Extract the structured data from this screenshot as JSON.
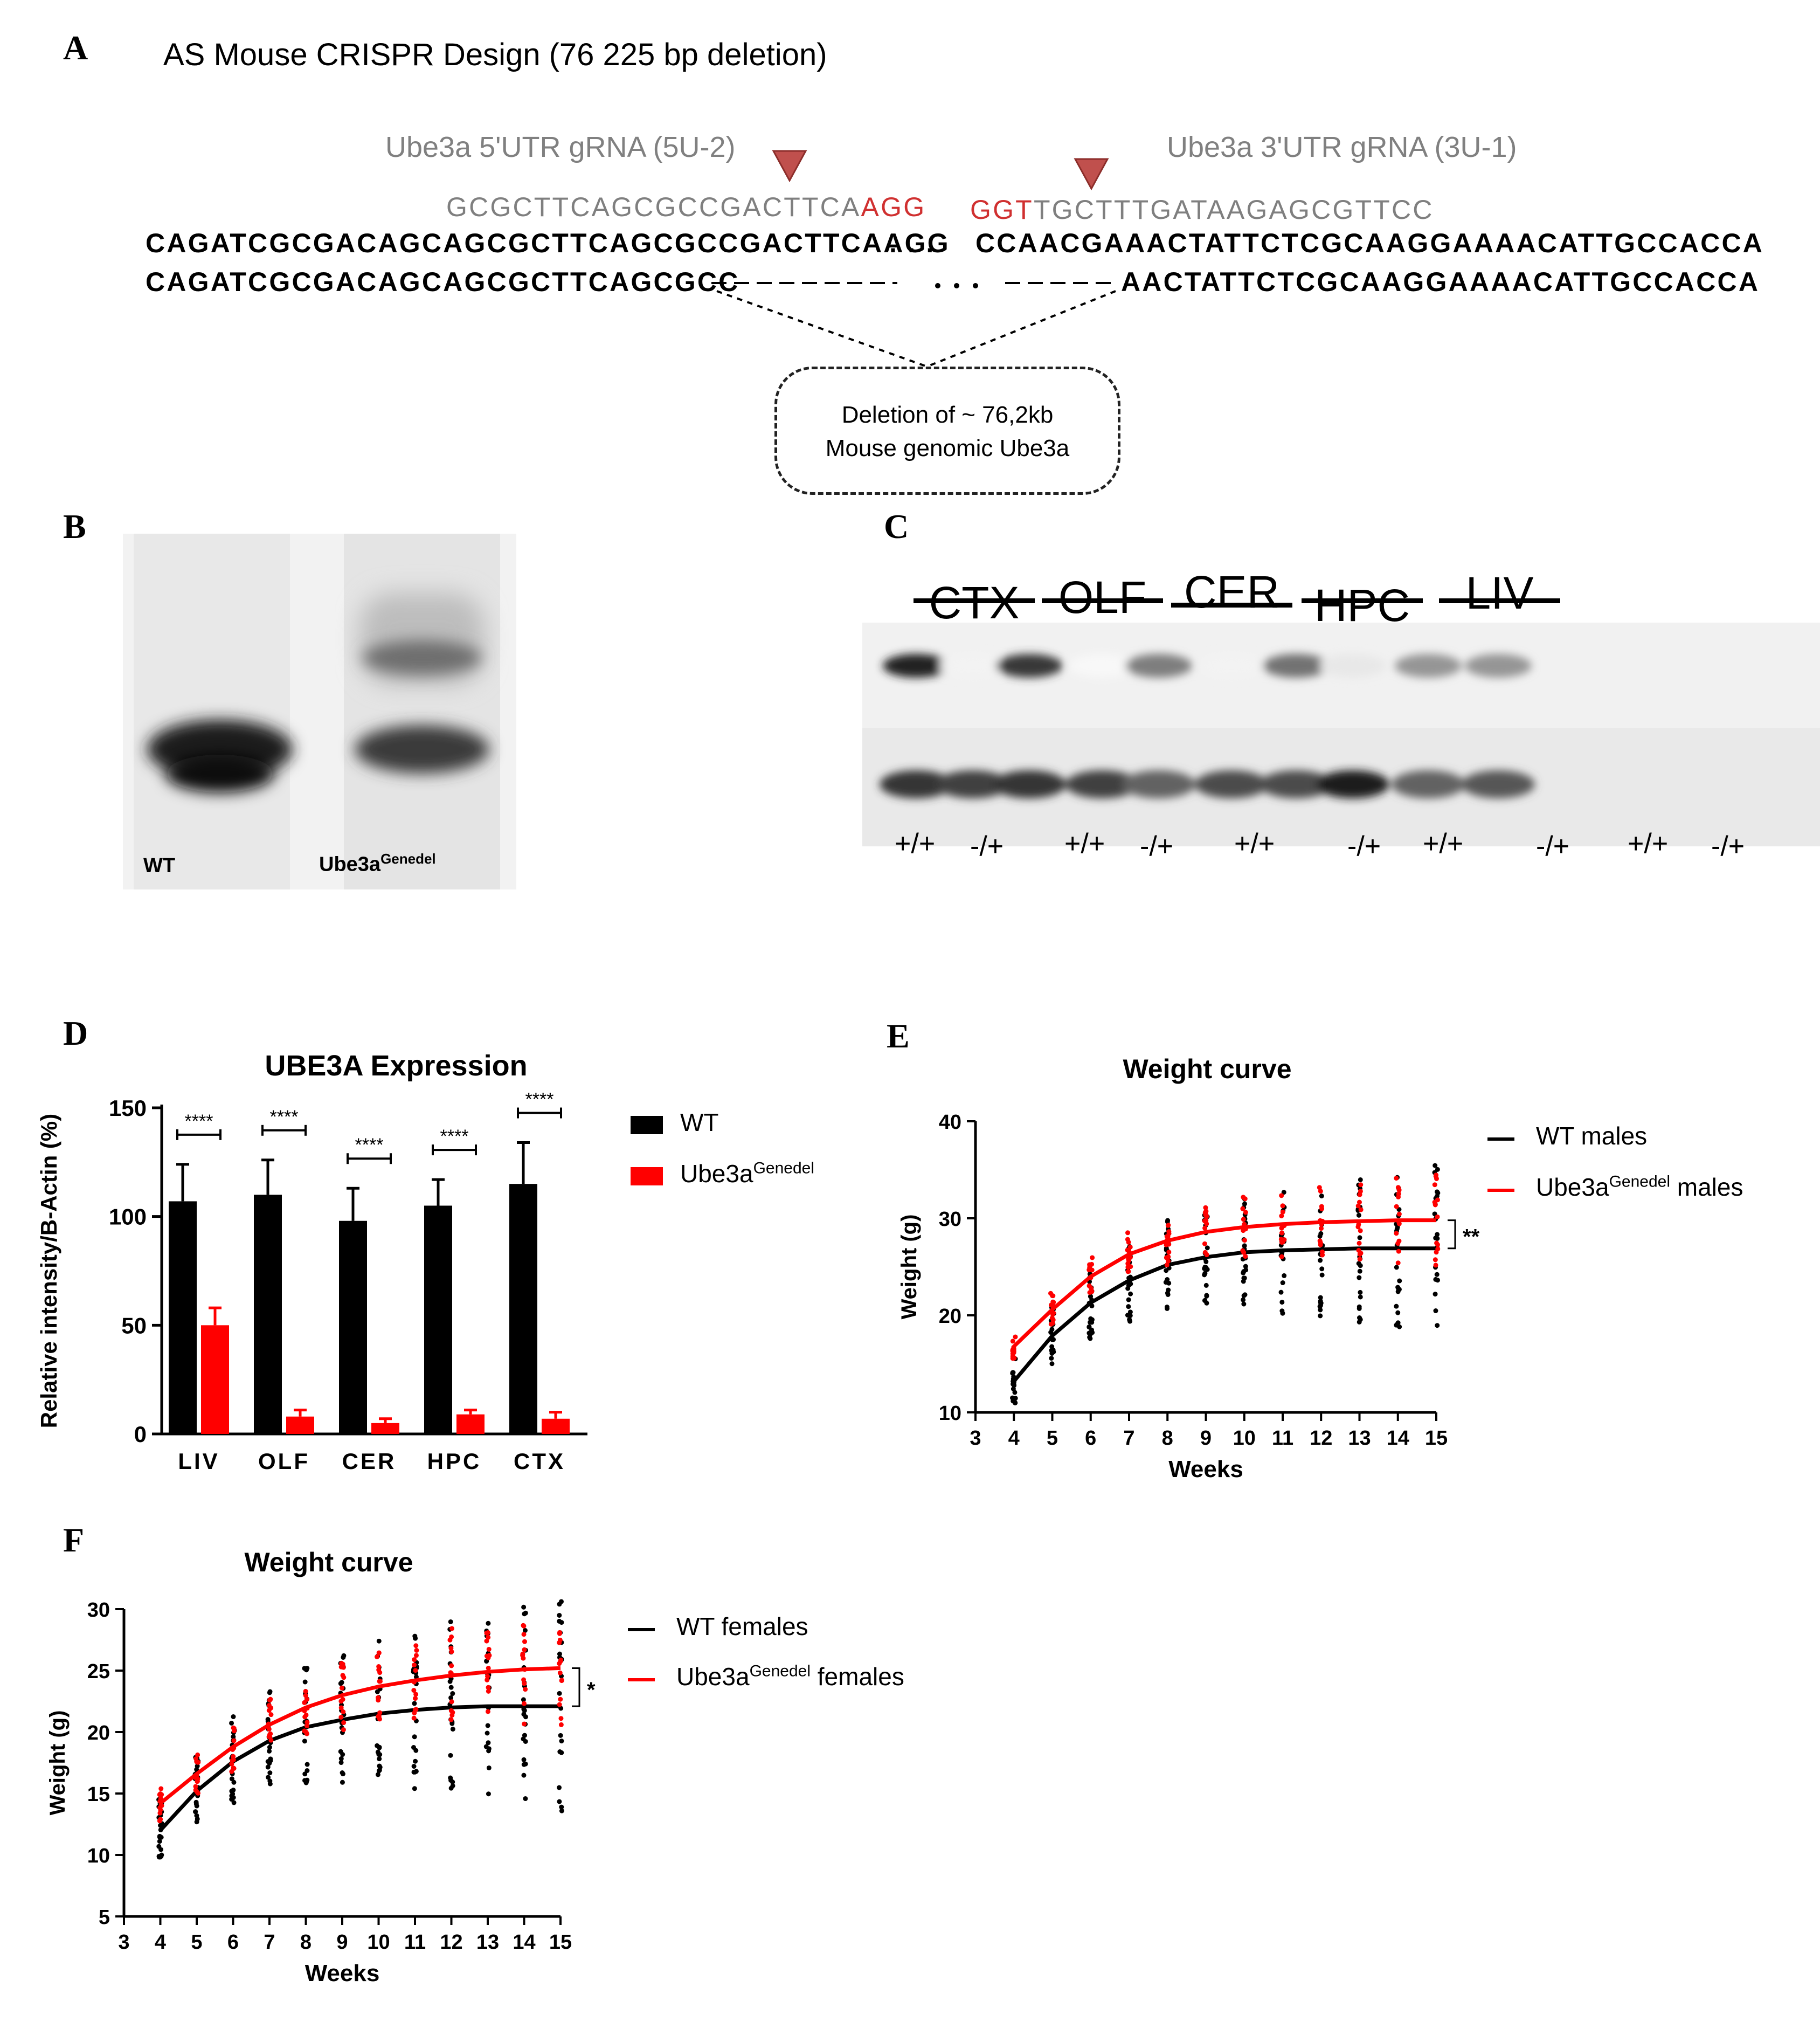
{
  "panel_a": {
    "letter": "A",
    "title": "AS Mouse CRISPR Design (76 225 bp deletion)",
    "grna_5_label": "Ube3a 5'UTR gRNA (5U-2)",
    "grna_3_label": "Ube3a 3'UTR gRNA (3U-1)",
    "grna_5_seq": "GCGCTTCAGCGCCGACTTCA",
    "grna_5_pam": "AGG",
    "grna_3_pam": "GGT",
    "grna_3_seq": "TGCTTTGATAAGAGCGTTCC",
    "wt_left": "CAGATCGCGACAGCAGCGCTTCAGCGCCGACTTCAAGG",
    "wt_dots": ". . .",
    "wt_right": "CCAACGAAACTATTCTCGCAAGGAAAACATTGCCACCA",
    "del_left": "CAGATCGCGACAGCAGCGCTTCAGCGCC",
    "del_right": "AACTATTCTCGCAAGGAAAACATTGCCACCA",
    "deletion_line1": "Deletion of ~ 76,2kb",
    "deletion_line2": "Mouse genomic Ube3a",
    "colors": {
      "pam": "#d03030",
      "cut_marker": "#c0504d",
      "grna_text": "#7f7f7f"
    }
  },
  "panel_b": {
    "letter": "B",
    "lane_wt": "WT",
    "lane_del_base": "Ube3a",
    "lane_del_sup": "Genedel"
  },
  "panel_c": {
    "letter": "C",
    "tissues": [
      "CTX",
      "OLF",
      "CER",
      "HPC",
      "LIV"
    ],
    "genotypes": [
      "+/+",
      "-/+",
      "+/+",
      "-/+",
      "+/+",
      "-/+",
      "+/+",
      "-/+",
      "+/+",
      "-/+"
    ]
  },
  "panel_d": {
    "letter": "D",
    "legend": [
      {
        "base": "WT",
        "sup": "",
        "color": "#000000"
      },
      {
        "base": "Ube3a",
        "sup": "Genedel",
        "color": "#ff0000"
      }
    ],
    "significance": "****",
    "chart_data": {
      "type": "bar",
      "title": "UBE3A Expression",
      "xlabel": "",
      "ylabel": "Relative intensity/B-Actin (%)",
      "categories": [
        "LIV",
        "OLF",
        "CER",
        "HPC",
        "CTX"
      ],
      "ylim": [
        0,
        150
      ],
      "yticks": [
        0,
        50,
        100,
        150
      ],
      "series": [
        {
          "name": "WT",
          "values": [
            107,
            110,
            98,
            105,
            115
          ],
          "errors": [
            17,
            16,
            15,
            12,
            19
          ],
          "color": "#000000"
        },
        {
          "name": "Ube3aGenedel",
          "values": [
            50,
            8,
            5,
            9,
            7
          ],
          "errors": [
            8,
            3,
            2,
            2,
            3
          ],
          "color": "#ff0000"
        }
      ]
    }
  },
  "panel_e": {
    "letter": "E",
    "legend": [
      {
        "base": "WT males",
        "sup": "",
        "suffix": "",
        "color": "#000000"
      },
      {
        "base": "Ube3a",
        "sup": "Genedel",
        "suffix": " males",
        "color": "#ff0000"
      }
    ],
    "significance": "**",
    "chart_data": {
      "type": "line",
      "title": "Weight curve",
      "xlabel": "Weeks",
      "ylabel": "Weight (g)",
      "xlim": [
        3,
        15
      ],
      "ylim": [
        10,
        40
      ],
      "xticks": [
        3,
        4,
        5,
        6,
        7,
        8,
        9,
        10,
        11,
        12,
        13,
        14,
        15
      ],
      "yticks": [
        10,
        20,
        30,
        40
      ],
      "x": [
        4,
        5,
        6,
        7,
        8,
        9,
        10,
        11,
        12,
        13,
        14,
        15
      ],
      "series": [
        {
          "name": "WT males",
          "values": [
            13.2,
            17.9,
            21.3,
            23.6,
            25.2,
            26.0,
            26.5,
            26.7,
            26.8,
            26.9,
            26.9,
            26.9
          ],
          "color": "#000000"
        },
        {
          "name": "Ube3aGenedel males",
          "values": [
            16.8,
            20.6,
            24.0,
            26.3,
            27.7,
            28.6,
            29.1,
            29.4,
            29.6,
            29.7,
            29.8,
            29.8
          ],
          "color": "#ff0000"
        }
      ]
    }
  },
  "panel_f": {
    "letter": "F",
    "legend": [
      {
        "base": "WT females",
        "sup": "",
        "suffix": "",
        "color": "#000000"
      },
      {
        "base": "Ube3a",
        "sup": "Genedel",
        "suffix": " females",
        "color": "#ff0000"
      }
    ],
    "significance": "*",
    "chart_data": {
      "type": "line",
      "title": "Weight curve",
      "xlabel": "Weeks",
      "ylabel": "Weight (g)",
      "xlim": [
        3,
        15
      ],
      "ylim": [
        5,
        30
      ],
      "xticks": [
        3,
        4,
        5,
        6,
        7,
        8,
        9,
        10,
        11,
        12,
        13,
        14,
        15
      ],
      "yticks": [
        5,
        10,
        15,
        20,
        25,
        30
      ],
      "x": [
        4,
        5,
        6,
        7,
        8,
        9,
        10,
        11,
        12,
        13,
        14,
        15
      ],
      "series": [
        {
          "name": "WT females",
          "values": [
            12.0,
            15.2,
            17.6,
            19.3,
            20.4,
            21.0,
            21.5,
            21.8,
            22.0,
            22.1,
            22.1,
            22.1
          ],
          "color": "#000000"
        },
        {
          "name": "Ube3aGenedel females",
          "values": [
            14.2,
            16.6,
            18.8,
            20.6,
            22.0,
            23.0,
            23.7,
            24.2,
            24.6,
            24.9,
            25.1,
            25.2
          ],
          "color": "#ff0000"
        }
      ]
    }
  }
}
